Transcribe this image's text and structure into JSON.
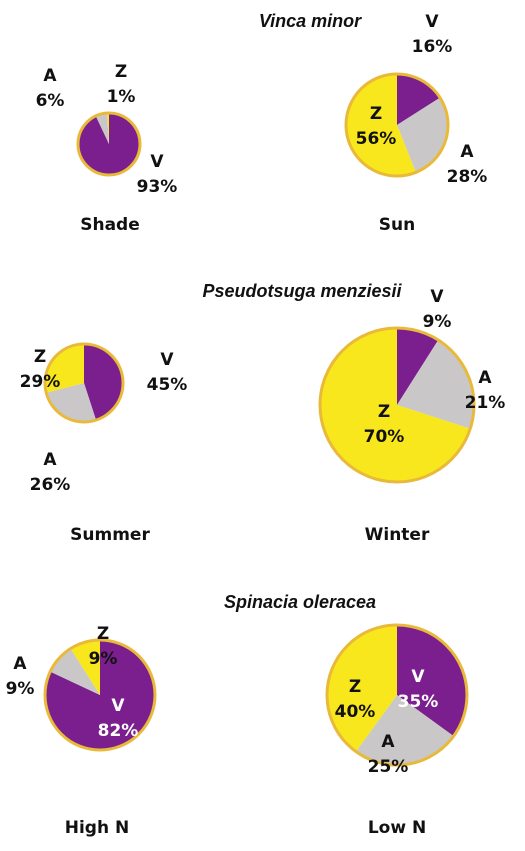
{
  "titles": [
    "Vinca minor",
    "Pseudotsuga menziesii",
    "Spinacia oleracea"
  ],
  "chart_data": [
    {
      "type": "pie",
      "label": "Shade",
      "categories": [
        "V",
        "A",
        "Z"
      ],
      "values": [
        93,
        6,
        1
      ],
      "value_labels": [
        "93%",
        "6%",
        "1%"
      ],
      "colors": [
        "#7b1f8e",
        "#c9c7c7",
        "#f8e71c"
      ]
    },
    {
      "type": "pie",
      "label": "Sun",
      "categories": [
        "V",
        "A",
        "Z"
      ],
      "values": [
        16,
        28,
        56
      ],
      "value_labels": [
        "16%",
        "28%",
        "56%"
      ],
      "colors": [
        "#7b1f8e",
        "#c9c7c7",
        "#f8e71c"
      ]
    },
    {
      "type": "pie",
      "label": "Summer",
      "categories": [
        "V",
        "A",
        "Z"
      ],
      "values": [
        45,
        26,
        29
      ],
      "value_labels": [
        "45%",
        "26%",
        "29%"
      ],
      "colors": [
        "#7b1f8e",
        "#c9c7c7",
        "#f8e71c"
      ]
    },
    {
      "type": "pie",
      "label": "Winter",
      "categories": [
        "V",
        "A",
        "Z"
      ],
      "values": [
        9,
        21,
        70
      ],
      "value_labels": [
        "9%",
        "21%",
        "70%"
      ],
      "colors": [
        "#7b1f8e",
        "#c9c7c7",
        "#f8e71c"
      ]
    },
    {
      "type": "pie",
      "label": "High N",
      "categories": [
        "V",
        "A",
        "Z"
      ],
      "values": [
        82,
        9,
        9
      ],
      "value_labels": [
        "82%",
        "9%",
        "9%"
      ],
      "colors": [
        "#7b1f8e",
        "#c9c7c7",
        "#f8e71c"
      ]
    },
    {
      "type": "pie",
      "label": "Low N",
      "categories": [
        "V",
        "A",
        "Z"
      ],
      "values": [
        35,
        25,
        40
      ],
      "value_labels": [
        "35%",
        "25%",
        "40%"
      ],
      "colors": [
        "#7b1f8e",
        "#c9c7c7",
        "#f8e71c"
      ]
    }
  ]
}
